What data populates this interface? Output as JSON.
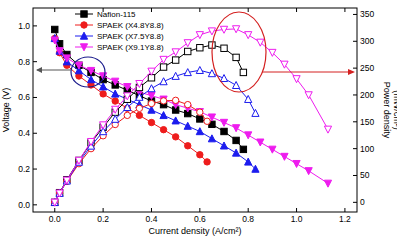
{
  "chart_data": {
    "type": "line",
    "x_label": "Current density (A/cm²)",
    "y_label": "Voltage (V)",
    "y2_label": [
      "Power density",
      "(mW/cm²)"
    ],
    "xlim": [
      -0.09,
      1.25
    ],
    "ylim": [
      -0.04,
      1.1
    ],
    "y2lim": [
      -18,
      362
    ],
    "xticks": [
      {
        "value": 0,
        "label": "0.0"
      },
      0.2,
      0.4,
      0.6,
      0.8,
      {
        "value": 1,
        "label": "1.0"
      },
      1.2
    ],
    "yticks": [
      {
        "value": 0,
        "label": "0.0"
      },
      0.2,
      0.4,
      0.6,
      0.8,
      {
        "value": 1,
        "label": "1.0"
      }
    ],
    "y2ticks": [
      0,
      50,
      100,
      150,
      200,
      250,
      300,
      350
    ],
    "legend": "upper left",
    "grid": false,
    "series": [
      {
        "name": "Nafion-115",
        "color": "#000000",
        "marker": "square",
        "x": [
          0,
          0.02,
          0.05,
          0.1,
          0.15,
          0.2,
          0.25,
          0.3,
          0.35,
          0.4,
          0.45,
          0.5,
          0.55,
          0.6,
          0.65,
          0.7,
          0.75,
          0.78
        ],
        "values": [
          0.98,
          0.9,
          0.84,
          0.78,
          0.74,
          0.7,
          0.67,
          0.64,
          0.61,
          0.58,
          0.56,
          0.53,
          0.51,
          0.48,
          0.45,
          0.41,
          0.36,
          0.31
        ]
      },
      {
        "name": "SPAEK (X4.8Y8.8)",
        "color": "#ee1c1c",
        "marker": "circle",
        "x": [
          0,
          0.02,
          0.05,
          0.1,
          0.15,
          0.2,
          0.25,
          0.3,
          0.35,
          0.4,
          0.45,
          0.5,
          0.55,
          0.6,
          0.63
        ],
        "values": [
          0.93,
          0.85,
          0.78,
          0.72,
          0.67,
          0.62,
          0.58,
          0.54,
          0.5,
          0.46,
          0.42,
          0.38,
          0.33,
          0.28,
          0.24
        ]
      },
      {
        "name": "SPAEK (X7.5Y8.8)",
        "color": "#1c1cee",
        "marker": "triangle",
        "x": [
          0,
          0.02,
          0.05,
          0.1,
          0.15,
          0.2,
          0.25,
          0.3,
          0.35,
          0.4,
          0.45,
          0.5,
          0.55,
          0.6,
          0.65,
          0.7,
          0.75,
          0.8,
          0.83
        ],
        "values": [
          0.93,
          0.86,
          0.8,
          0.75,
          0.7,
          0.66,
          0.62,
          0.59,
          0.56,
          0.53,
          0.5,
          0.47,
          0.44,
          0.41,
          0.37,
          0.33,
          0.29,
          0.24,
          0.2
        ]
      },
      {
        "name": "SPAEK (X9.1Y8.8)",
        "color": "#ee1cee",
        "marker": "triangle-down",
        "x": [
          0,
          0.02,
          0.05,
          0.1,
          0.15,
          0.2,
          0.25,
          0.3,
          0.35,
          0.4,
          0.45,
          0.5,
          0.55,
          0.6,
          0.65,
          0.7,
          0.75,
          0.8,
          0.85,
          0.9,
          0.95,
          1.0,
          1.05,
          1.13
        ],
        "values": [
          0.92,
          0.86,
          0.82,
          0.78,
          0.75,
          0.72,
          0.69,
          0.66,
          0.63,
          0.61,
          0.59,
          0.56,
          0.54,
          0.52,
          0.49,
          0.46,
          0.43,
          0.39,
          0.35,
          0.31,
          0.27,
          0.23,
          0.19,
          0.12
        ]
      },
      {
        "name": "Nafion-115",
        "color": "#000000",
        "marker": "square-open",
        "axis": "y2",
        "x": [
          0,
          0.02,
          0.05,
          0.1,
          0.15,
          0.2,
          0.25,
          0.3,
          0.35,
          0.4,
          0.45,
          0.5,
          0.55,
          0.6,
          0.65,
          0.7,
          0.75,
          0.78
        ],
        "values": [
          0,
          18,
          42,
          78,
          111,
          140,
          168,
          192,
          214,
          232,
          252,
          265,
          281,
          288,
          293,
          287,
          270,
          242
        ]
      },
      {
        "name": "SPAEK (X4.8Y8.8)",
        "color": "#ee1c1c",
        "marker": "circle-open",
        "axis": "y2",
        "x": [
          0,
          0.02,
          0.05,
          0.1,
          0.15,
          0.2,
          0.25,
          0.3,
          0.35,
          0.4,
          0.45,
          0.5,
          0.55,
          0.6,
          0.63
        ],
        "values": [
          0,
          17,
          39,
          72,
          100,
          124,
          145,
          162,
          175,
          184,
          189,
          190,
          182,
          168,
          151
        ]
      },
      {
        "name": "SPAEK (X7.5Y8.8)",
        "color": "#1c1cee",
        "marker": "triangle-open",
        "axis": "y2",
        "x": [
          0,
          0.02,
          0.05,
          0.1,
          0.15,
          0.2,
          0.25,
          0.3,
          0.35,
          0.4,
          0.45,
          0.5,
          0.55,
          0.6,
          0.65,
          0.7,
          0.75,
          0.8,
          0.83
        ],
        "values": [
          0,
          17,
          40,
          75,
          105,
          132,
          155,
          177,
          196,
          212,
          225,
          235,
          242,
          246,
          240,
          231,
          218,
          192,
          166
        ]
      },
      {
        "name": "SPAEK (X9.1Y8.8)",
        "color": "#ee1cee",
        "marker": "triangle-down-open",
        "axis": "y2",
        "x": [
          0,
          0.02,
          0.05,
          0.1,
          0.15,
          0.2,
          0.25,
          0.3,
          0.35,
          0.4,
          0.45,
          0.5,
          0.55,
          0.6,
          0.65,
          0.7,
          0.75,
          0.8,
          0.85,
          0.9,
          0.95,
          1.0,
          1.05,
          1.13
        ],
        "values": [
          0,
          17,
          41,
          78,
          113,
          144,
          173,
          198,
          221,
          244,
          266,
          280,
          297,
          312,
          319,
          322,
          323,
          312,
          298,
          279,
          257,
          230,
          200,
          136
        ]
      }
    ]
  }
}
